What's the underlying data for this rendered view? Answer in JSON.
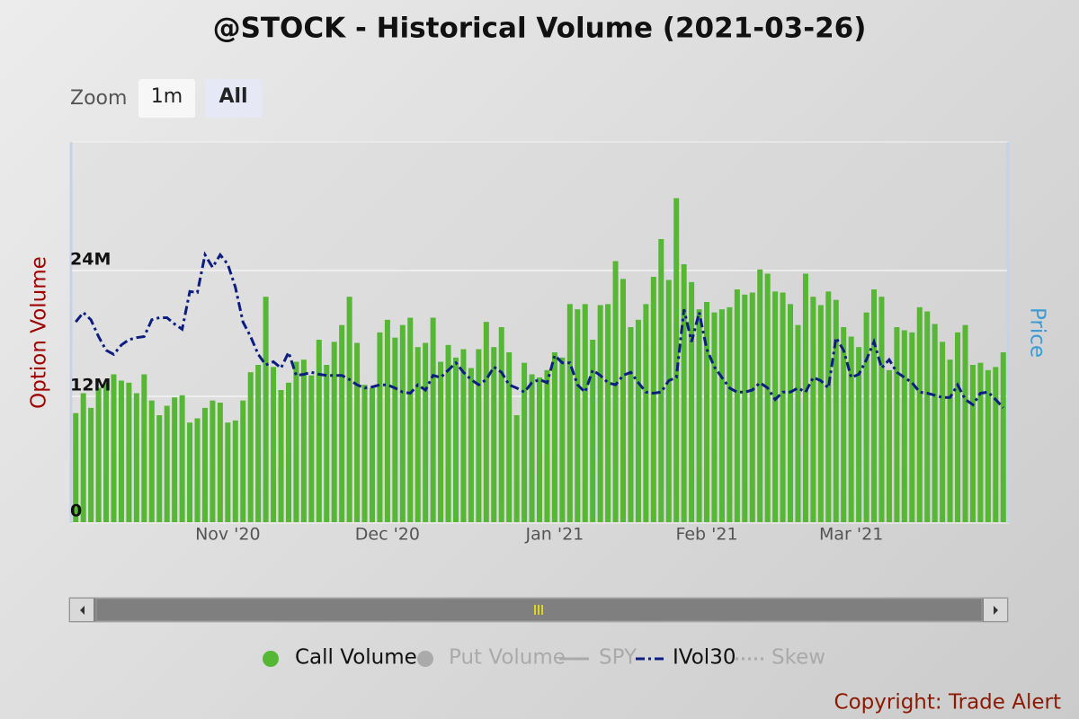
{
  "chart_data": {
    "type": "bar",
    "title": "@STOCK - Historical Volume (2021-03-26)",
    "zoom": {
      "label": "Zoom",
      "buttons": [
        {
          "label": "1m",
          "selected": false
        },
        {
          "label": "All",
          "selected": true
        }
      ]
    },
    "y_label": "Option Volume",
    "y2_label": "Price",
    "copyright": "Copyright: Trade Alert",
    "categories": [
      null,
      null,
      null,
      null,
      null,
      null,
      null,
      null,
      null,
      null,
      null,
      null,
      null,
      null,
      null,
      null,
      null,
      null,
      null,
      null,
      "Nov '20",
      null,
      null,
      null,
      null,
      null,
      null,
      null,
      null,
      null,
      null,
      null,
      null,
      null,
      null,
      null,
      null,
      null,
      null,
      null,
      null,
      "Dec '20",
      null,
      null,
      null,
      null,
      null,
      null,
      null,
      null,
      null,
      null,
      null,
      null,
      null,
      null,
      null,
      null,
      null,
      null,
      null,
      null,
      null,
      "Jan '21",
      null,
      null,
      null,
      null,
      null,
      null,
      null,
      null,
      null,
      null,
      null,
      null,
      null,
      null,
      null,
      null,
      null,
      null,
      null,
      "Feb '21",
      null,
      null,
      null,
      null,
      null,
      null,
      null,
      null,
      null,
      null,
      null,
      null,
      null,
      null,
      null,
      null,
      null,
      null,
      "Mar '21",
      null,
      null,
      null,
      null,
      null,
      null,
      null,
      null,
      null,
      null,
      null,
      null,
      null,
      null,
      null,
      null,
      null,
      null,
      null,
      null
    ],
    "ylim": [
      0,
      36
    ],
    "yticks": [
      0,
      {
        "value": 12,
        "label": "12M"
      },
      {
        "value": 24,
        "label": "24M"
      }
    ],
    "y2lim": [
      0,
      36
    ],
    "grid": true,
    "series": [
      {
        "name": "Call Volume",
        "type": "bar",
        "color": "#56b734",
        "visible": true,
        "values": [
          10.4,
          12.3,
          10.9,
          12.8,
          13.3,
          14.1,
          13.5,
          13.3,
          12.3,
          14.1,
          11.6,
          10.2,
          11.1,
          11.9,
          12.1,
          9.5,
          9.9,
          10.9,
          11.6,
          11.4,
          9.5,
          9.7,
          11.6,
          14.3,
          15.0,
          21.5,
          14.8,
          12.6,
          13.3,
          15.3,
          15.5,
          14.0,
          17.4,
          15.0,
          17.2,
          18.8,
          21.5,
          17.1,
          13.1,
          12.8,
          18.1,
          19.3,
          17.6,
          18.8,
          19.5,
          16.7,
          17.1,
          19.5,
          15.3,
          16.9,
          15.7,
          16.5,
          14.7,
          16.5,
          19.1,
          16.7,
          18.6,
          16.2,
          10.2,
          15.2,
          14.1,
          13.8,
          14.5,
          16.2,
          15.7,
          20.8,
          20.3,
          20.8,
          17.4,
          20.7,
          20.8,
          24.9,
          23.2,
          18.6,
          19.3,
          20.8,
          23.4,
          27.0,
          23.1,
          30.9,
          24.6,
          22.9,
          20.3,
          21.0,
          20.0,
          20.3,
          20.5,
          22.2,
          21.7,
          21.9,
          24.1,
          23.7,
          22.0,
          21.9,
          20.8,
          18.8,
          23.7,
          21.5,
          20.7,
          22.0,
          21.2,
          18.6,
          17.7,
          16.7,
          20.0,
          22.2,
          21.5,
          14.5,
          18.6,
          18.3,
          18.1,
          20.5,
          20.1,
          18.9,
          17.2,
          15.5,
          18.1,
          18.8,
          15.0,
          15.2,
          14.5,
          14.8,
          16.2
        ]
      },
      {
        "name": "Put Volume",
        "type": "bar",
        "color": "#aaaaaa",
        "visible": false
      },
      {
        "name": "SPY",
        "type": "line",
        "line_style": "solid",
        "color": "#aaaaaa",
        "visible": false
      },
      {
        "name": "IVol30",
        "type": "line",
        "line_style": "dashdot",
        "color": "#0b1e80",
        "visible": true,
        "axis": "y2",
        "values": [
          19.1,
          20.0,
          19.3,
          17.7,
          16.4,
          16.0,
          16.9,
          17.4,
          17.6,
          17.7,
          19.3,
          19.5,
          19.5,
          18.9,
          18.4,
          22.0,
          21.9,
          25.5,
          24.3,
          25.5,
          24.6,
          22.4,
          19.1,
          17.7,
          16.0,
          15.0,
          15.3,
          14.7,
          16.2,
          14.0,
          14.1,
          14.3,
          14.1,
          14.0,
          14.0,
          14.0,
          13.6,
          13.1,
          12.8,
          12.9,
          13.1,
          13.1,
          12.8,
          12.4,
          12.3,
          13.1,
          12.6,
          14.0,
          13.8,
          14.5,
          15.2,
          14.3,
          13.6,
          13.1,
          13.6,
          14.8,
          14.3,
          13.1,
          12.8,
          12.4,
          13.3,
          13.6,
          13.3,
          15.9,
          15.2,
          15.2,
          13.1,
          12.4,
          14.5,
          14.0,
          13.3,
          13.1,
          14.0,
          14.3,
          13.3,
          12.4,
          12.3,
          12.4,
          13.5,
          13.8,
          20.3,
          17.2,
          20.0,
          16.5,
          14.8,
          13.8,
          12.8,
          12.4,
          12.4,
          12.6,
          13.3,
          12.8,
          11.7,
          12.4,
          12.4,
          12.8,
          12.4,
          13.8,
          13.5,
          12.8,
          17.6,
          16.4,
          13.8,
          14.1,
          15.5,
          17.2,
          14.7,
          15.5,
          14.3,
          13.8,
          13.3,
          12.4,
          12.3,
          12.1,
          11.9,
          11.9,
          13.1,
          11.7,
          11.2,
          12.3,
          12.4,
          11.7,
          10.9
        ]
      },
      {
        "name": "Skew",
        "type": "line",
        "line_style": "dotted",
        "color": "#aaaaaa",
        "visible": false
      }
    ]
  }
}
